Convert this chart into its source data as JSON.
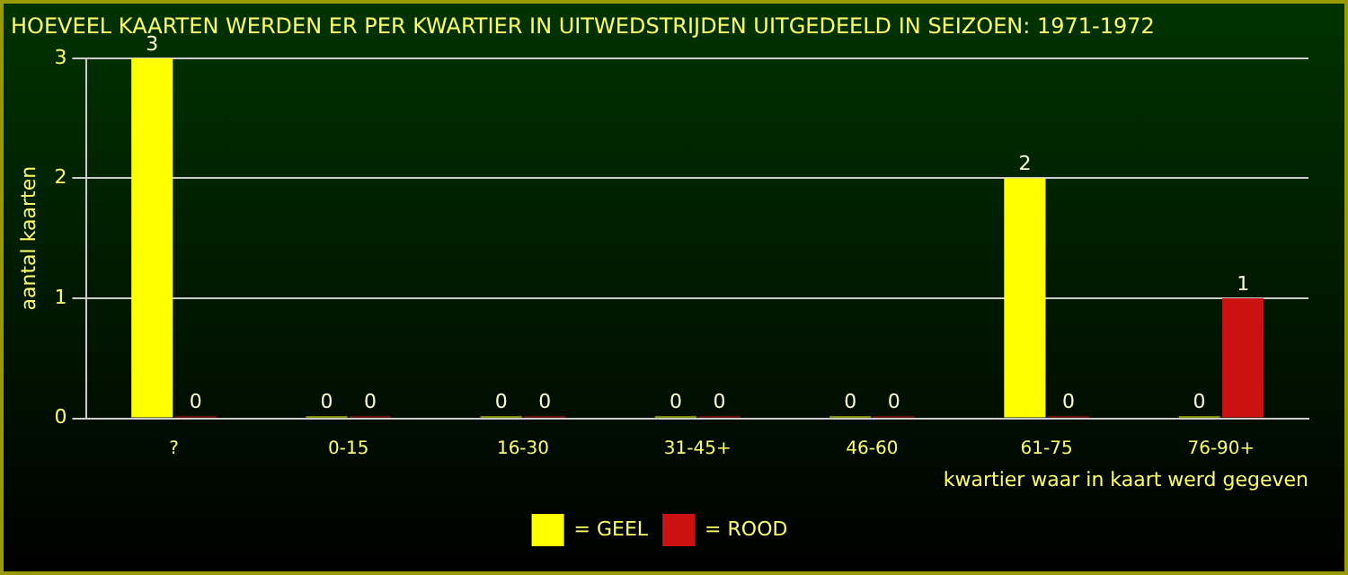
{
  "chart_data": {
    "type": "bar",
    "title": "HOEVEEL KAARTEN WERDEN ER PER KWARTIER IN UITWEDSTRIJDEN UITGEDEELD IN SEIZOEN: 1971-1972",
    "xlabel": "kwartier waar in kaart werd gegeven",
    "ylabel": "aantal kaarten",
    "categories": [
      "?",
      "0-15",
      "16-30",
      "31-45+",
      "46-60",
      "61-75",
      "76-90+"
    ],
    "series": [
      {
        "name": "= GEEL",
        "color": "#ffff00",
        "values": [
          3,
          0,
          0,
          0,
          0,
          2,
          0
        ]
      },
      {
        "name": "= ROOD",
        "color": "#cc1111",
        "values": [
          0,
          0,
          0,
          0,
          0,
          0,
          1
        ]
      }
    ],
    "ylim": [
      0,
      3
    ],
    "yticks": [
      0,
      1,
      2,
      3
    ],
    "grid": "y",
    "legend": "bottom",
    "data_labels": true
  }
}
